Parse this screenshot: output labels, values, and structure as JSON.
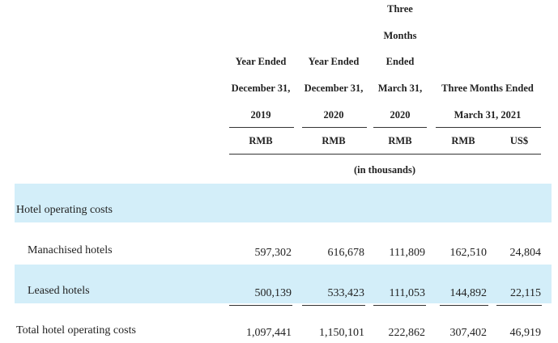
{
  "header": {
    "c1": [
      "Year Ended",
      "December 31,",
      "2019"
    ],
    "c2": [
      "Year Ended",
      "December 31,",
      "2020"
    ],
    "c3": [
      "Three",
      "Months",
      "Ended",
      "March 31,",
      "2020"
    ],
    "c45": [
      "Three Months Ended",
      "March 31, 2021"
    ],
    "currency": [
      "RMB",
      "RMB",
      "RMB",
      "RMB",
      "US$"
    ],
    "unit_note": "(in thousands)"
  },
  "rows": [
    {
      "label": "Hotel operating costs",
      "values": [
        "",
        "",
        "",
        "",
        ""
      ]
    },
    {
      "label": "Manachised hotels",
      "values": [
        "597,302",
        "616,678",
        "111,809",
        "162,510",
        "24,804"
      ]
    },
    {
      "label": "Leased hotels",
      "values": [
        "500,139",
        "533,423",
        "111,053",
        "144,892",
        "22,115"
      ]
    },
    {
      "label": "Total hotel operating costs",
      "values": [
        "1,097,441",
        "1,150,101",
        "222,862",
        "307,402",
        "46,919"
      ]
    }
  ],
  "colors": {
    "band": "#d3eef9",
    "rule": "#333333"
  }
}
